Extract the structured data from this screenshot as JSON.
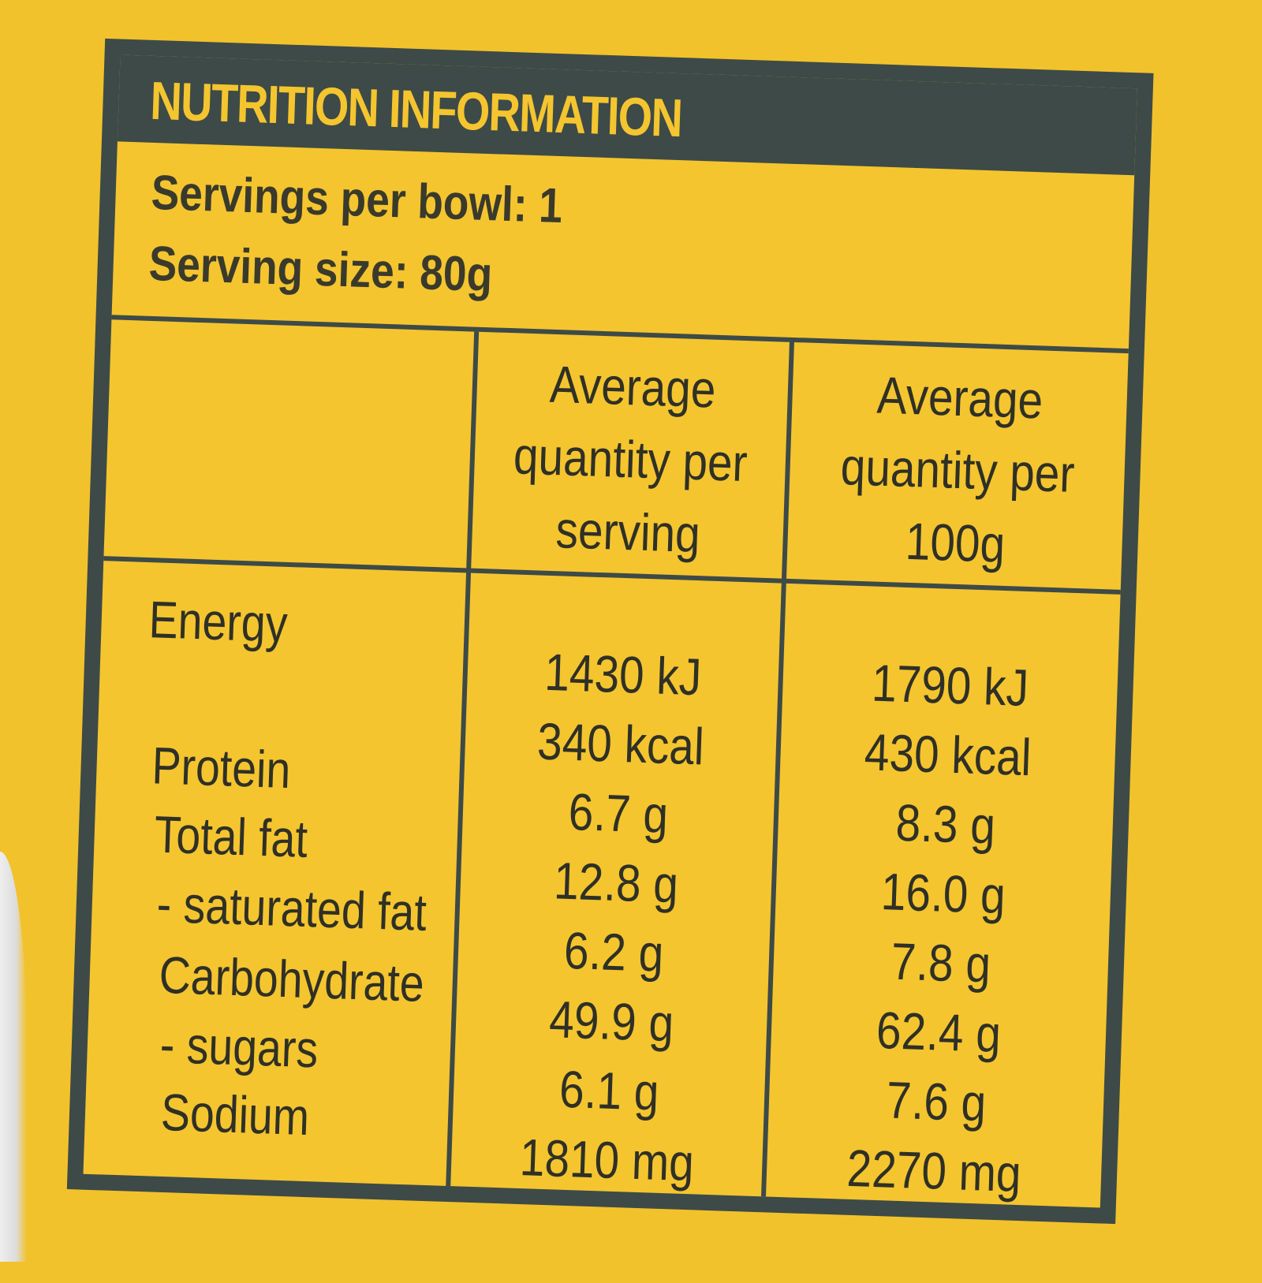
{
  "label": {
    "title": "NUTRITION INFORMATION",
    "servings_per_bowl": "Servings per bowl: 1",
    "serving_size": "Serving size: 80g"
  },
  "columns": {
    "per_serving": [
      "Average",
      "quantity per",
      "serving"
    ],
    "per_100g": [
      "Average",
      "quantity per",
      "100g"
    ]
  },
  "rows": [
    {
      "name": "Energy",
      "per_serving": "1430 kJ",
      "per_100g": "1790 kJ"
    },
    {
      "name": "",
      "per_serving": "340 kcal",
      "per_100g": "430 kcal"
    },
    {
      "name": "Protein",
      "per_serving": "6.7 g",
      "per_100g": "8.3 g"
    },
    {
      "name": "Total fat",
      "per_serving": "12.8 g",
      "per_100g": "16.0 g"
    },
    {
      "name": "- saturated fat",
      "per_serving": "6.2 g",
      "per_100g": "7.8 g"
    },
    {
      "name": "Carbohydrate",
      "per_serving": "49.9 g",
      "per_100g": "62.4 g"
    },
    {
      "name": "- sugars",
      "per_serving": "6.1 g",
      "per_100g": "7.6 g"
    },
    {
      "name": "Sodium",
      "per_serving": "1810 mg",
      "per_100g": "2270 mg"
    }
  ],
  "colors": {
    "background": "#f2c22c",
    "panel_border": "#3d4a47",
    "text": "#2f3026"
  }
}
